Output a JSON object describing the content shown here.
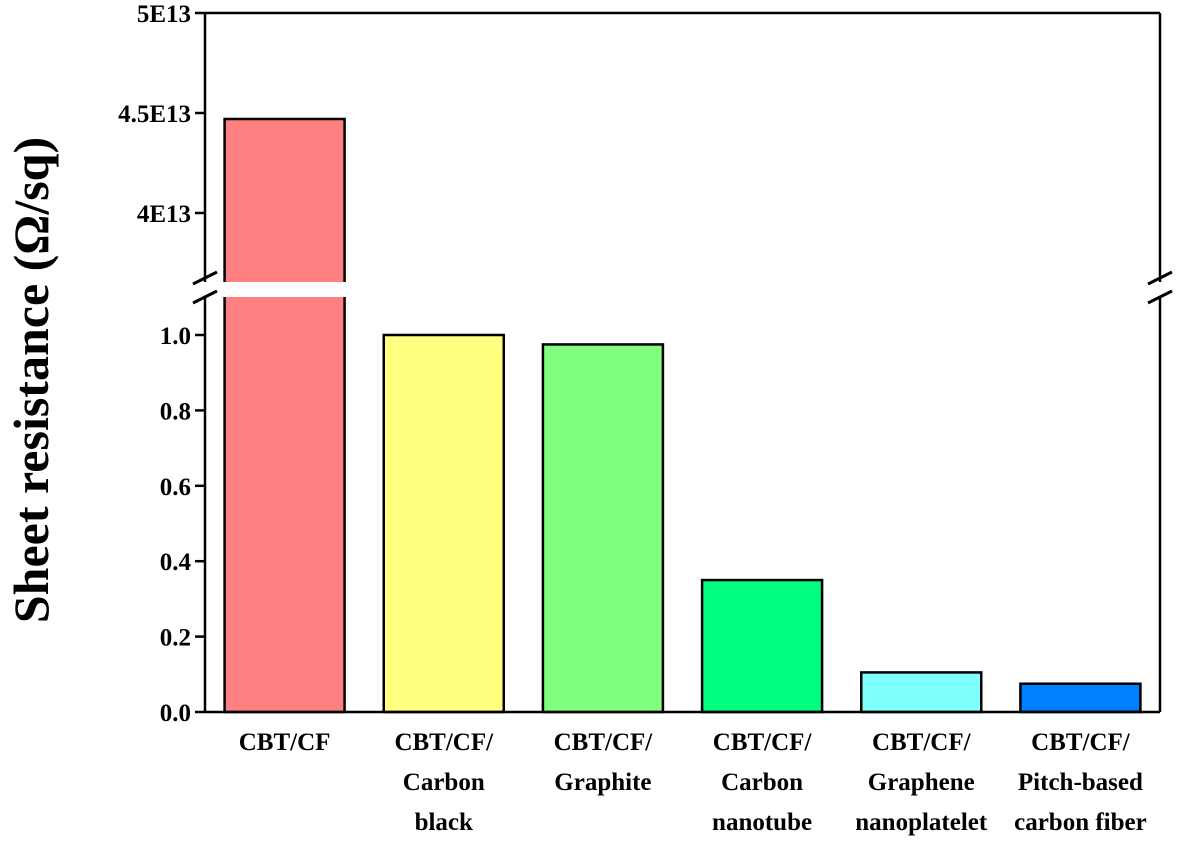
{
  "chart_data": {
    "type": "bar",
    "ylabel": "Sheet resistance (Ω/sq)",
    "xlabel": "",
    "title": "",
    "y_axis_break": true,
    "lower_ylim": [
      0,
      1.0
    ],
    "upper_ylim": [
      37500000000000.0,
      50000000000000.0
    ],
    "lower_ticks": [
      "0.0",
      "0.2",
      "0.4",
      "0.6",
      "0.8",
      "1.0"
    ],
    "lower_tick_values": [
      0,
      0.2,
      0.4,
      0.6,
      0.8,
      1.0
    ],
    "upper_ticks": [
      "4E13",
      "4.5E13",
      "5E13"
    ],
    "upper_tick_values": [
      40000000000000.0,
      45000000000000.0,
      50000000000000.0
    ],
    "categories": [
      [
        "CBT/CF"
      ],
      [
        "CBT/CF/",
        "Carbon",
        "black"
      ],
      [
        "CBT/CF/",
        "Graphite"
      ],
      [
        "CBT/CF/",
        "Carbon",
        "nanotube"
      ],
      [
        "CBT/CF/",
        "Graphene",
        "nanoplatelet"
      ],
      [
        "CBT/CF/",
        "Pitch-based",
        "carbon fiber"
      ]
    ],
    "values": [
      44700000000000.0,
      1.0,
      0.975,
      0.35,
      0.105,
      0.075
    ],
    "colors": [
      "#ff8080",
      "#ffff80",
      "#80ff80",
      "#00ff80",
      "#80ffff",
      "#0080ff"
    ],
    "grid": false
  }
}
